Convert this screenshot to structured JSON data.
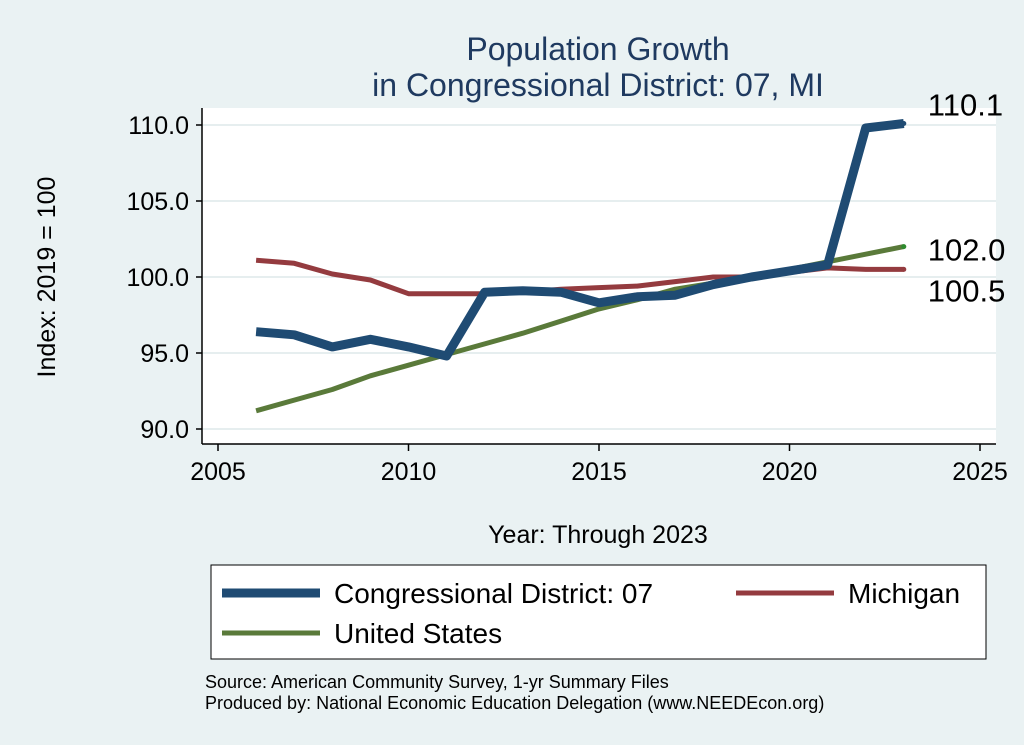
{
  "chart_data": {
    "type": "line",
    "title": [
      "Population Growth",
      "in Congressional District: 07, MI"
    ],
    "xlabel": "Year: Through 2023",
    "ylabel": "Index: 2019 = 100",
    "xlim": [
      2005,
      2025
    ],
    "ylim": [
      90,
      110
    ],
    "x_ticks": [
      2005,
      2010,
      2015,
      2020,
      2025
    ],
    "y_ticks": [
      90,
      95,
      100,
      105,
      110
    ],
    "y_tick_labels": [
      "90.0",
      "95.0",
      "100.0",
      "105.0",
      "110.0"
    ],
    "grid": true,
    "legend_position": "bottom",
    "x": [
      2006,
      2007,
      2008,
      2009,
      2010,
      2011,
      2012,
      2013,
      2014,
      2015,
      2016,
      2017,
      2018,
      2019,
      2020,
      2021,
      2022,
      2023
    ],
    "series": [
      {
        "name": "Congressional District: 07",
        "color": "#1f4b73",
        "values": [
          96.4,
          96.2,
          95.4,
          95.9,
          95.4,
          94.8,
          99.0,
          99.1,
          99.0,
          98.3,
          98.7,
          98.8,
          99.5,
          100.0,
          100.4,
          100.8,
          109.8,
          110.1
        ],
        "end_label": "110.1"
      },
      {
        "name": "Michigan",
        "color": "#943b3f",
        "values": [
          101.1,
          100.9,
          100.2,
          99.8,
          98.9,
          98.9,
          98.9,
          99.0,
          99.2,
          99.3,
          99.4,
          99.7,
          100.0,
          100.0,
          100.3,
          100.6,
          100.5,
          100.5
        ],
        "end_label": "100.5"
      },
      {
        "name": "United States",
        "color": "#5a7a3a",
        "values": [
          91.2,
          91.9,
          92.6,
          93.5,
          94.2,
          94.9,
          95.6,
          96.3,
          97.1,
          97.9,
          98.5,
          99.2,
          99.6,
          100.0,
          100.5,
          101.0,
          101.5,
          102.0
        ],
        "end_label": "102.0"
      }
    ],
    "source_lines": [
      "Source: American Community Survey, 1-yr Summary Files",
      "Produced by: National Economic Education Delegation (www.NEEDEcon.org)"
    ]
  }
}
